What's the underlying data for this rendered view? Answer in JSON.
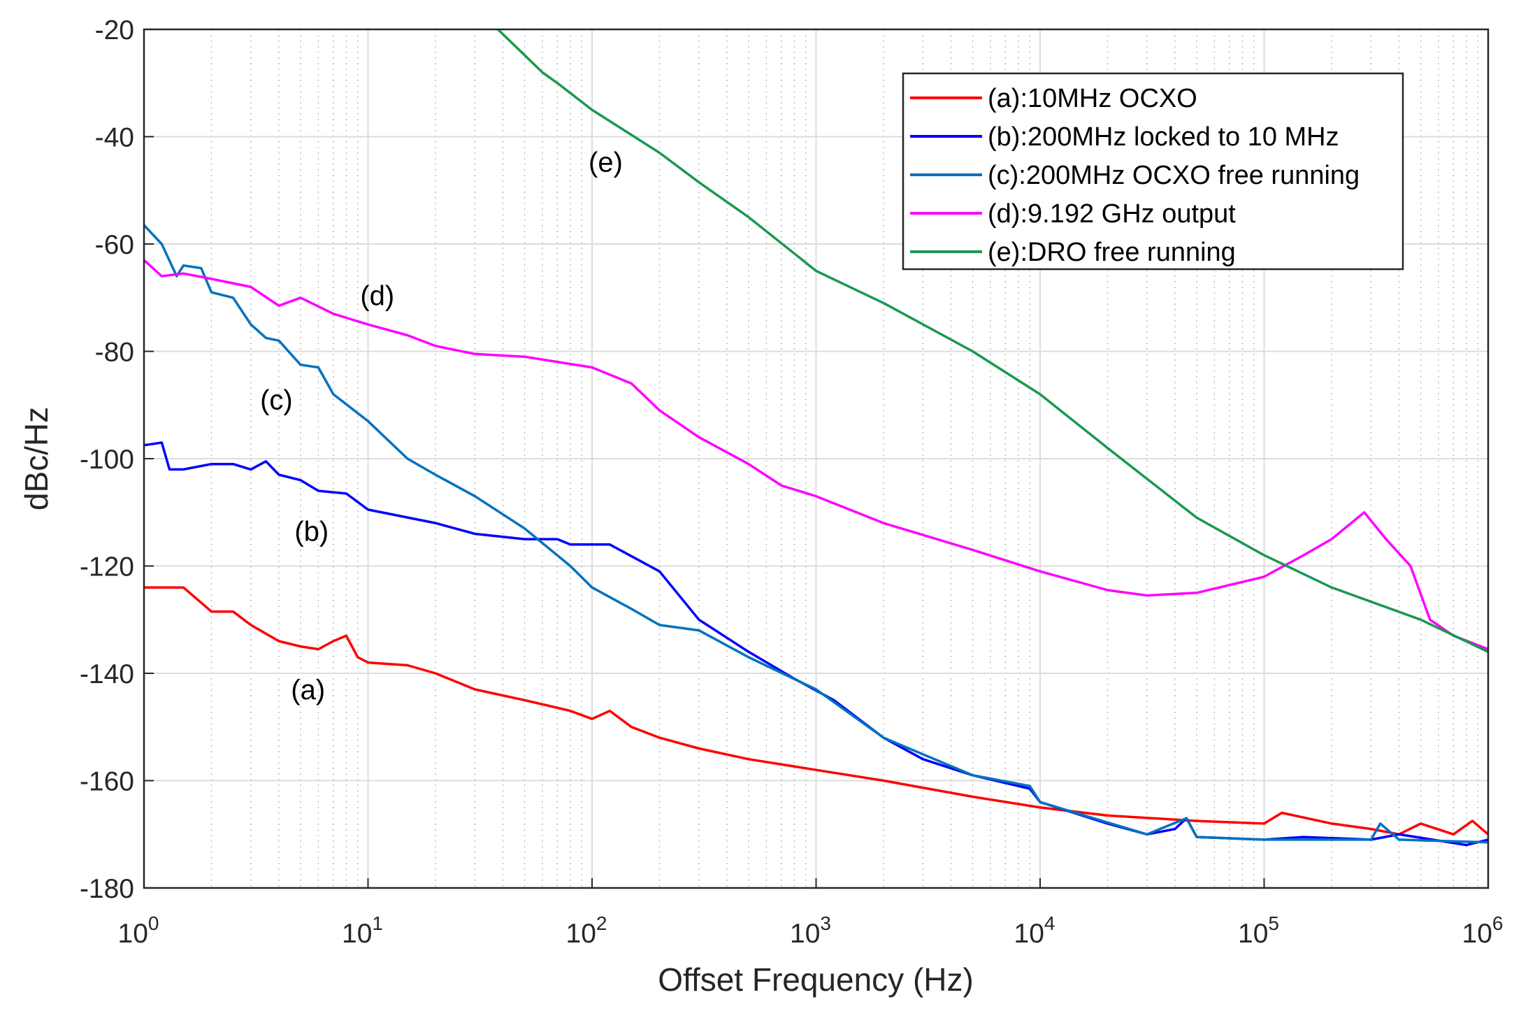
{
  "chart_data": {
    "type": "line",
    "title": "",
    "xlabel": "Offset Frequency (Hz)",
    "ylabel": "dBc/Hz",
    "xscale": "log",
    "xlim": [
      1,
      1000000
    ],
    "ylim": [
      -180,
      -20
    ],
    "xticks": [
      {
        "base": "10",
        "exp": "0"
      },
      {
        "base": "10",
        "exp": "1"
      },
      {
        "base": "10",
        "exp": "2"
      },
      {
        "base": "10",
        "exp": "3"
      },
      {
        "base": "10",
        "exp": "4"
      },
      {
        "base": "10",
        "exp": "5"
      },
      {
        "base": "10",
        "exp": "6"
      }
    ],
    "yticks": [
      "-20",
      "-40",
      "-60",
      "-80",
      "-100",
      "-120",
      "-140",
      "-160",
      "-180"
    ],
    "grid": true,
    "legend_position": "top-right",
    "series": [
      {
        "name": "(a):10MHz OCXO",
        "color": "#ff0000",
        "x": [
          1,
          1.5,
          2,
          2.5,
          3,
          4,
          5,
          6,
          7,
          8,
          9,
          10,
          15,
          20,
          30,
          50,
          80,
          100,
          120,
          150,
          200,
          300,
          500,
          1000,
          2000,
          5000,
          10000,
          20000,
          50000,
          100000,
          120000,
          200000,
          300000,
          400000,
          500000,
          700000,
          850000,
          1000000
        ],
        "y": [
          -124,
          -124,
          -128.5,
          -128.5,
          -131,
          -134,
          -135,
          -135.5,
          -134,
          -133,
          -137,
          -138,
          -138.5,
          -140,
          -143,
          -145,
          -147,
          -148.5,
          -147,
          -150,
          -152,
          -154,
          -156,
          -158,
          -160,
          -163,
          -165,
          -166.5,
          -167.5,
          -168,
          -166,
          -168,
          -169,
          -170,
          -168,
          -170,
          -167.5,
          -170
        ]
      },
      {
        "name": "(b):200MHz locked to 10 MHz",
        "color": "#0000ff",
        "x": [
          1,
          1.2,
          1.3,
          1.5,
          2,
          2.5,
          3,
          3.5,
          4,
          5,
          6,
          8,
          10,
          20,
          30,
          50,
          70,
          80,
          120,
          200,
          300,
          500,
          800,
          1200,
          2000,
          3000,
          5000,
          9000,
          10000,
          20000,
          30000,
          40000,
          45000,
          50000,
          100000,
          150000,
          300000,
          400000,
          800000,
          1000000
        ],
        "y": [
          -97.5,
          -97,
          -102,
          -102,
          -101,
          -101,
          -102,
          -100.5,
          -103,
          -104,
          -106,
          -106.5,
          -109.5,
          -112,
          -114,
          -115,
          -115,
          -116,
          -116,
          -121,
          -130,
          -136,
          -141,
          -145,
          -152,
          -156,
          -159,
          -161.5,
          -164,
          -168,
          -170,
          -169,
          -167,
          -170.5,
          -171,
          -170.5,
          -171,
          -170,
          -172,
          -171
        ]
      },
      {
        "name": "(c):200MHz OCXO free running",
        "color": "#0072bd",
        "x": [
          1,
          1.2,
          1.4,
          1.5,
          1.8,
          2,
          2.5,
          3,
          3.5,
          4,
          5,
          6,
          7,
          10,
          15,
          20,
          30,
          50,
          80,
          100,
          150,
          200,
          300,
          500,
          1000,
          2000,
          5000,
          9000,
          10000,
          30000,
          45000,
          50000,
          100000,
          300000,
          330000,
          400000,
          1000000
        ],
        "y": [
          -56.5,
          -60,
          -66,
          -64,
          -64.5,
          -69,
          -70,
          -75,
          -77.5,
          -78,
          -82.5,
          -83,
          -88,
          -93,
          -100,
          -103,
          -107,
          -113,
          -120,
          -124,
          -128,
          -131,
          -132,
          -137,
          -143,
          -152,
          -159,
          -161,
          -164,
          -170,
          -167,
          -170.5,
          -171,
          -171,
          -168,
          -171,
          -171.5
        ]
      },
      {
        "name": "(d):9.192 GHz output",
        "color": "#ff00ff",
        "x": [
          1,
          1.2,
          1.5,
          2,
          3,
          4,
          5,
          7,
          10,
          15,
          20,
          30,
          50,
          100,
          150,
          200,
          300,
          500,
          700,
          1000,
          2000,
          5000,
          10000,
          20000,
          30000,
          50000,
          100000,
          150000,
          200000,
          280000,
          350000,
          450000,
          550000,
          700000,
          1000000
        ],
        "y": [
          -63,
          -66,
          -65.5,
          -66.5,
          -68,
          -71.5,
          -70,
          -73,
          -75,
          -77,
          -79,
          -80.5,
          -81,
          -83,
          -86,
          -91,
          -96,
          -101,
          -105,
          -107,
          -112,
          -117,
          -121,
          -124.5,
          -125.5,
          -125,
          -122,
          -118,
          -115,
          -110,
          -115,
          -120,
          -130,
          -133,
          -135.5
        ]
      },
      {
        "name": "(e):DRO free running",
        "color": "#1a9850",
        "x": [
          38,
          60,
          70,
          100,
          200,
          300,
          500,
          1000,
          2000,
          5000,
          10000,
          20000,
          50000,
          100000,
          200000,
          500000,
          1000000
        ],
        "y": [
          -20,
          -28,
          -30,
          -35,
          -43,
          -48.5,
          -55,
          -65,
          -71,
          -80,
          -88,
          -98,
          -111,
          -118,
          -124,
          -130,
          -136
        ]
      }
    ],
    "annotations": [
      {
        "text": "(e)",
        "x": 115,
        "y": -44.7
      },
      {
        "text": "(d)",
        "x": 11,
        "y": -69.6
      },
      {
        "text": "(c)",
        "x": 3.9,
        "y": -89
      },
      {
        "text": "(b)",
        "x": 5.6,
        "y": -113.5
      },
      {
        "text": "(a)",
        "x": 5.4,
        "y": -143
      }
    ]
  }
}
